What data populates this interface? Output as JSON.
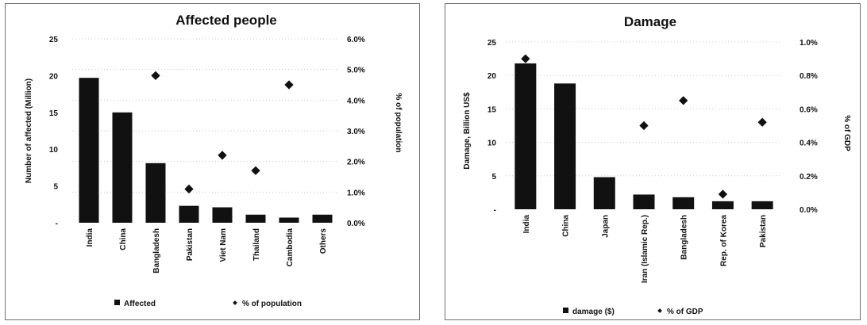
{
  "colors": {
    "bar": "#111111",
    "marker": "#111111",
    "grid": "#c8c8c8",
    "frame": "#6f6f6f"
  },
  "chart_data": [
    {
      "type": "bar",
      "title": "Affected people",
      "categories": [
        "India",
        "China",
        "Bangladesh",
        "Pakistan",
        "Viet Nam",
        "Thailand",
        "Cambodia",
        "Others"
      ],
      "ylabel": "Number of affected (Million)",
      "y2label": "% of population",
      "ylim": [
        0,
        25
      ],
      "y2lim": [
        0,
        6
      ],
      "yticks": [
        "-",
        "5",
        "10",
        "15",
        "20",
        "25"
      ],
      "y2ticks": [
        "0.0%",
        "1.0%",
        "2.0%",
        "3.0%",
        "4.0%",
        "5.0%",
        "6.0%"
      ],
      "series": [
        {
          "name": "Affected",
          "axis": "left",
          "kind": "bar",
          "values": [
            19.7,
            15.0,
            8.1,
            2.3,
            2.1,
            1.1,
            0.7,
            1.1
          ]
        },
        {
          "name": "% of population",
          "axis": "right",
          "kind": "marker",
          "values": [
            null,
            null,
            4.8,
            1.1,
            2.2,
            1.7,
            4.5,
            null
          ]
        }
      ],
      "legend": {
        "position": "bottom",
        "items": [
          "Affected",
          "% of population"
        ]
      },
      "grid": true
    },
    {
      "type": "bar",
      "title": "Damage",
      "categories": [
        "India",
        "China",
        "Japan",
        "Iran (Islamic Rep.)",
        "Bangladesh",
        "Rep. of Korea",
        "Pakistan"
      ],
      "ylabel": "Damage, Billion US$",
      "y2label": "% of GDP",
      "ylim": [
        0,
        25
      ],
      "y2lim": [
        0,
        1
      ],
      "yticks": [
        "-",
        "5",
        "10",
        "15",
        "20",
        "25"
      ],
      "y2ticks": [
        "0.0%",
        "0.2%",
        "0.4%",
        "0.6%",
        "0.8%",
        "1.0%"
      ],
      "series": [
        {
          "name": "damage ($)",
          "axis": "left",
          "kind": "bar",
          "values": [
            21.8,
            18.8,
            4.8,
            2.2,
            1.8,
            1.2,
            1.2
          ]
        },
        {
          "name": "% of GDP",
          "axis": "right",
          "kind": "marker",
          "values": [
            0.9,
            null,
            null,
            0.5,
            0.65,
            0.09,
            0.52
          ]
        }
      ],
      "legend": {
        "position": "bottom",
        "items": [
          "damage ($)",
          "% of GDP"
        ]
      },
      "grid": true
    }
  ]
}
